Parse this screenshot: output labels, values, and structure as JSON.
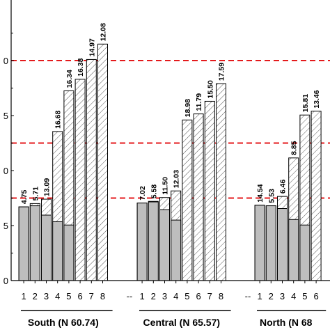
{
  "chart_data": {
    "type": "bar",
    "stacked": true,
    "y_tick_labels": [
      "0",
      "5",
      "0",
      "5",
      "0"
    ],
    "ylim": [
      0,
      50
    ],
    "reference_lines": [
      15,
      25,
      40
    ],
    "reference_line_color": "#e41a1c",
    "solid_color": "#bebebe",
    "hatch_color": "#555555",
    "groups": [
      {
        "label": "South (N 60.74)",
        "categories": [
          "1",
          "2",
          "3",
          "4",
          "5",
          "6",
          "7",
          "8"
        ],
        "data_labels": [
          "4.75",
          "5.71",
          "13.09",
          "16.68",
          "16.34",
          "16.38",
          "14.97",
          "12.08"
        ],
        "total": [
          13.4,
          14.0,
          14.8,
          27.1,
          34.5,
          36.6,
          40.2,
          43.0
        ],
        "solid": [
          13.4,
          13.6,
          11.9,
          10.7,
          10.1,
          0,
          0,
          0
        ]
      },
      {
        "label": "Central (N 65.57)",
        "categories": [
          "1",
          "2",
          "3",
          "4",
          "5",
          "6",
          "7",
          "8"
        ],
        "data_labels": [
          "7.02",
          "5.58",
          "11.50",
          "12.03",
          "18.98",
          "11.79",
          "15.50",
          "17.59"
        ],
        "total": [
          14.1,
          14.4,
          15.1,
          16.3,
          29.2,
          30.3,
          32.6,
          35.8
        ],
        "solid": [
          14.1,
          14.3,
          12.9,
          11.0,
          0,
          0,
          0,
          0
        ]
      },
      {
        "label": "North (N 68",
        "categories": [
          "1",
          "2",
          "3",
          "4",
          "5",
          "6"
        ],
        "data_labels": [
          "14.54",
          "5.53",
          "6.46",
          "8.85",
          "15.81",
          "13.46"
        ],
        "total": [
          13.7,
          13.6,
          15.3,
          22.3,
          30.1,
          30.8
        ],
        "solid": [
          13.7,
          13.6,
          13.1,
          11.1,
          10.1,
          0
        ]
      }
    ],
    "separator_label": "--"
  }
}
